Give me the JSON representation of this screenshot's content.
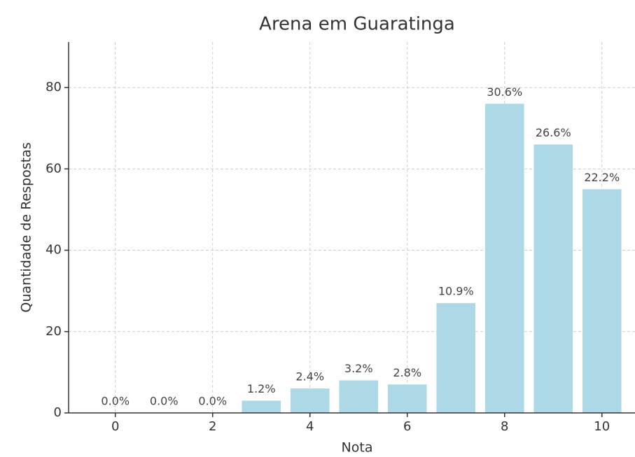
{
  "chart_data": {
    "type": "bar",
    "title": "Arena em Guaratinga",
    "xlabel": "Nota",
    "ylabel": "Quantidade de Respostas",
    "x": [
      0,
      1,
      2,
      3,
      4,
      5,
      6,
      7,
      8,
      9,
      10
    ],
    "values": [
      0,
      0,
      0,
      3,
      6,
      8,
      7,
      27,
      76,
      66,
      55
    ],
    "value_labels": [
      "0.0%",
      "0.0%",
      "0.0%",
      "1.2%",
      "2.4%",
      "3.2%",
      "2.8%",
      "10.9%",
      "30.6%",
      "26.6%",
      "22.2%"
    ],
    "color": "#add8e6",
    "xlim": [
      -0.96,
      10.68
    ],
    "xticks": [
      0,
      2,
      4,
      6,
      8,
      10
    ],
    "ylim": [
      0,
      91.2
    ],
    "yticks": [
      0,
      20,
      40,
      60,
      80
    ],
    "grid": true
  }
}
